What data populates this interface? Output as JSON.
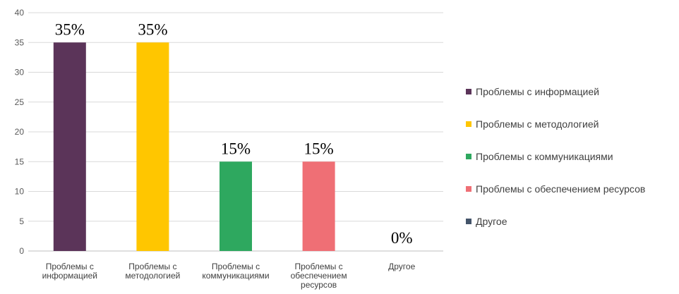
{
  "chart_data": {
    "type": "bar",
    "categories": [
      "Проблемы с информацией",
      "Проблемы с методологией",
      "Проблемы с коммуникациями",
      "Проблемы с обеспечением ресурсов",
      "Другое"
    ],
    "category_labels": [
      [
        "Проблемы с",
        "информацией"
      ],
      [
        "Проблемы с",
        "методологией"
      ],
      [
        "Проблемы с",
        "коммуникациями"
      ],
      [
        "Проблемы с",
        "обеспечением",
        "ресурсов"
      ],
      [
        "Другое"
      ]
    ],
    "values": [
      35,
      35,
      15,
      15,
      0
    ],
    "data_labels": [
      "35%",
      "35%",
      "15%",
      "15%",
      "0%"
    ],
    "colors": [
      "#5b3459",
      "#ffc600",
      "#2ea85f",
      "#ef6f75",
      "#44546a"
    ],
    "ylim": [
      0,
      40
    ],
    "yticks": [
      "0",
      "5",
      "10",
      "15",
      "20",
      "25",
      "30",
      "35",
      "40"
    ],
    "grid": true,
    "legend_position": "right",
    "legend": [
      "Проблемы с информацией",
      "Проблемы с методологией",
      "Проблемы с коммуникациями",
      "Проблемы с обеспечением ресурсов",
      "Другое"
    ],
    "title": "",
    "xlabel": "",
    "ylabel": ""
  }
}
